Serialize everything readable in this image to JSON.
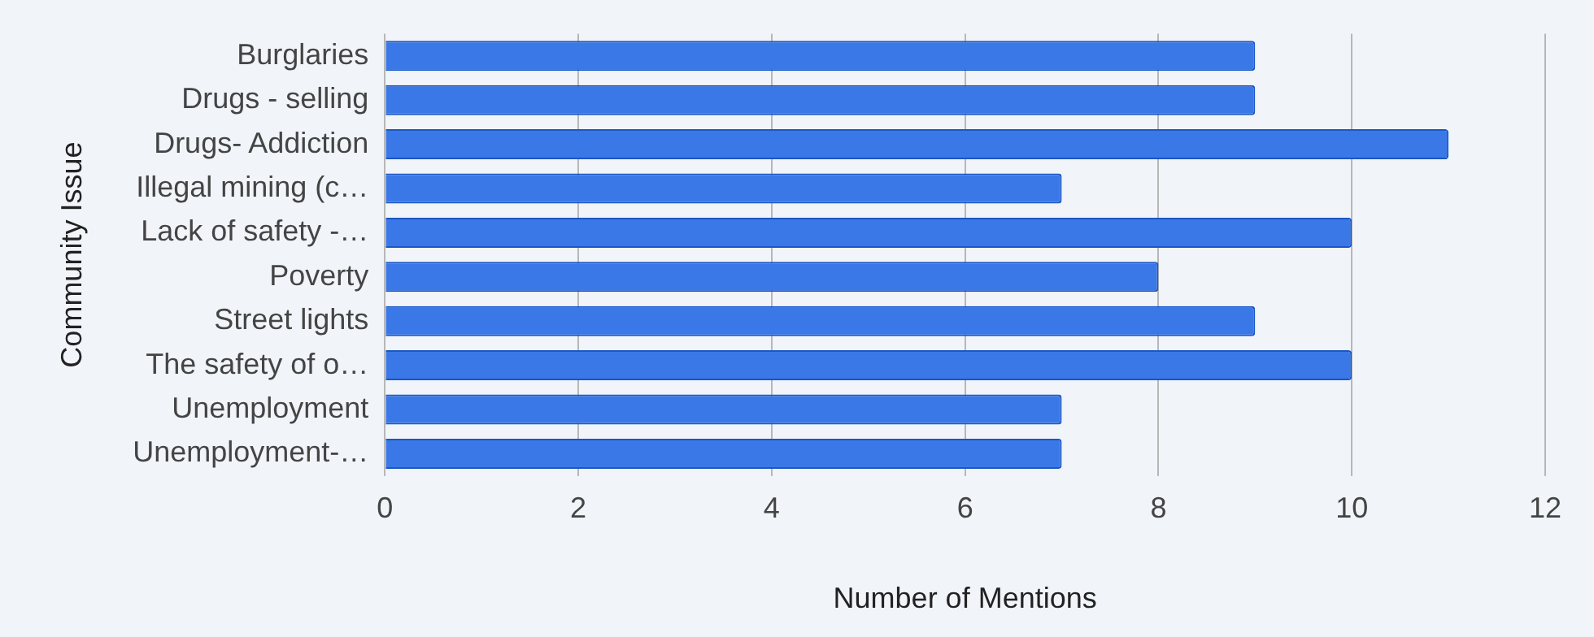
{
  "chart_data": {
    "type": "bar",
    "orientation": "horizontal",
    "xlabel": "Number of Mentions",
    "ylabel": "Community Issue",
    "categories": [
      "Burglaries",
      "Drugs - selling",
      "Drugs- Addiction",
      "Illegal mining (c…",
      "Lack of safety -…",
      "Poverty",
      "Street lights",
      "The safety of o…",
      "Unemployment",
      "Unemployment-…"
    ],
    "values": [
      9,
      9,
      11,
      7,
      10,
      8,
      9,
      10,
      7,
      7
    ],
    "color": "#3b78e7",
    "xlim": [
      0,
      12
    ],
    "xticks": [
      0,
      2,
      4,
      6,
      8,
      10,
      12
    ],
    "grid": "x"
  }
}
